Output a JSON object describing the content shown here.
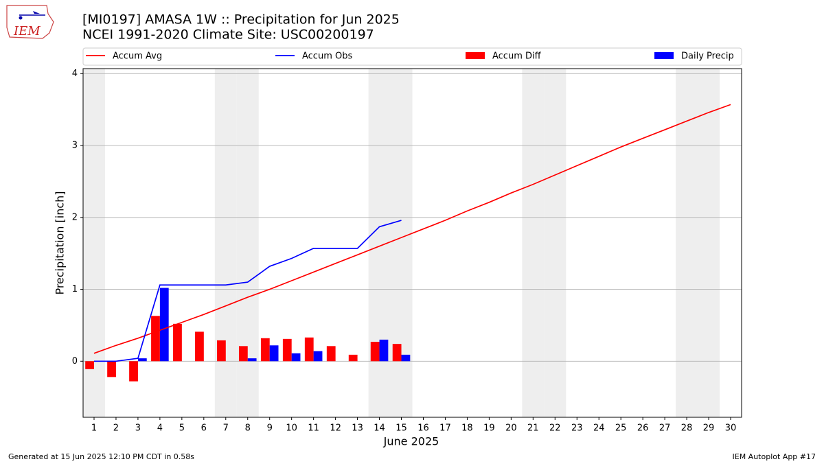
{
  "chart_data": {
    "type": "bar_line",
    "title": "[MI0197] AMASA 1W :: Precipitation for Jun 2025",
    "subtitle": "NCEI 1991-2020 Climate Site: USC00200197",
    "xlabel": "June 2025",
    "ylabel": "Precipitation [inch]",
    "logo": "IEM",
    "footer_left": "Generated at 15 Jun 2025 12:10 PM CDT in 0.58s",
    "footer_right": "IEM Autoplot App #17",
    "x": [
      1,
      2,
      3,
      4,
      5,
      6,
      7,
      8,
      9,
      10,
      11,
      12,
      13,
      14,
      15,
      16,
      17,
      18,
      19,
      20,
      21,
      22,
      23,
      24,
      25,
      26,
      27,
      28,
      29,
      30
    ],
    "xlim": [
      0.5,
      30.5
    ],
    "xticks": [
      1,
      2,
      3,
      4,
      5,
      6,
      7,
      8,
      9,
      10,
      11,
      12,
      13,
      14,
      15,
      16,
      17,
      18,
      19,
      20,
      21,
      22,
      23,
      24,
      25,
      26,
      27,
      28,
      29,
      30
    ],
    "ylim": [
      -0.78,
      4.07
    ],
    "yticks": [
      0,
      1,
      2,
      3,
      4
    ],
    "grid": true,
    "shaded_days": [
      1,
      7,
      8,
      14,
      15,
      21,
      22,
      28,
      29
    ],
    "series": [
      {
        "name": "Accum Avg",
        "kind": "line",
        "color": "#ff0000",
        "values": [
          0.11,
          0.22,
          0.32,
          0.43,
          0.54,
          0.65,
          0.77,
          0.89,
          1.0,
          1.12,
          1.24,
          1.36,
          1.48,
          1.6,
          1.72,
          1.84,
          1.96,
          2.09,
          2.21,
          2.34,
          2.46,
          2.59,
          2.72,
          2.85,
          2.98,
          3.1,
          3.22,
          3.34,
          3.46,
          3.57
        ]
      },
      {
        "name": "Accum Obs",
        "kind": "line",
        "color": "#0000ff",
        "values": [
          0,
          0,
          0.04,
          1.06,
          1.06,
          1.06,
          1.06,
          1.1,
          1.32,
          1.43,
          1.57,
          1.57,
          1.57,
          1.87,
          1.96,
          null,
          null,
          null,
          null,
          null,
          null,
          null,
          null,
          null,
          null,
          null,
          null,
          null,
          null,
          null
        ]
      },
      {
        "name": "Accum Diff",
        "kind": "bar",
        "offset": -1,
        "color": "#ff0000",
        "values": [
          -0.11,
          -0.22,
          -0.28,
          0.63,
          0.52,
          0.41,
          0.29,
          0.21,
          0.32,
          0.31,
          0.33,
          0.21,
          0.09,
          0.27,
          0.24,
          null,
          null,
          null,
          null,
          null,
          null,
          null,
          null,
          null,
          null,
          null,
          null,
          null,
          null,
          null
        ]
      },
      {
        "name": "Daily Precip",
        "kind": "bar",
        "offset": 0,
        "color": "#0000ff",
        "values": [
          0,
          0,
          0.04,
          1.02,
          0,
          0,
          0,
          0.04,
          0.22,
          0.11,
          0.14,
          0,
          0,
          0.3,
          0.09,
          null,
          null,
          null,
          null,
          null,
          null,
          null,
          null,
          null,
          null,
          null,
          null,
          null,
          null,
          null
        ]
      }
    ]
  }
}
